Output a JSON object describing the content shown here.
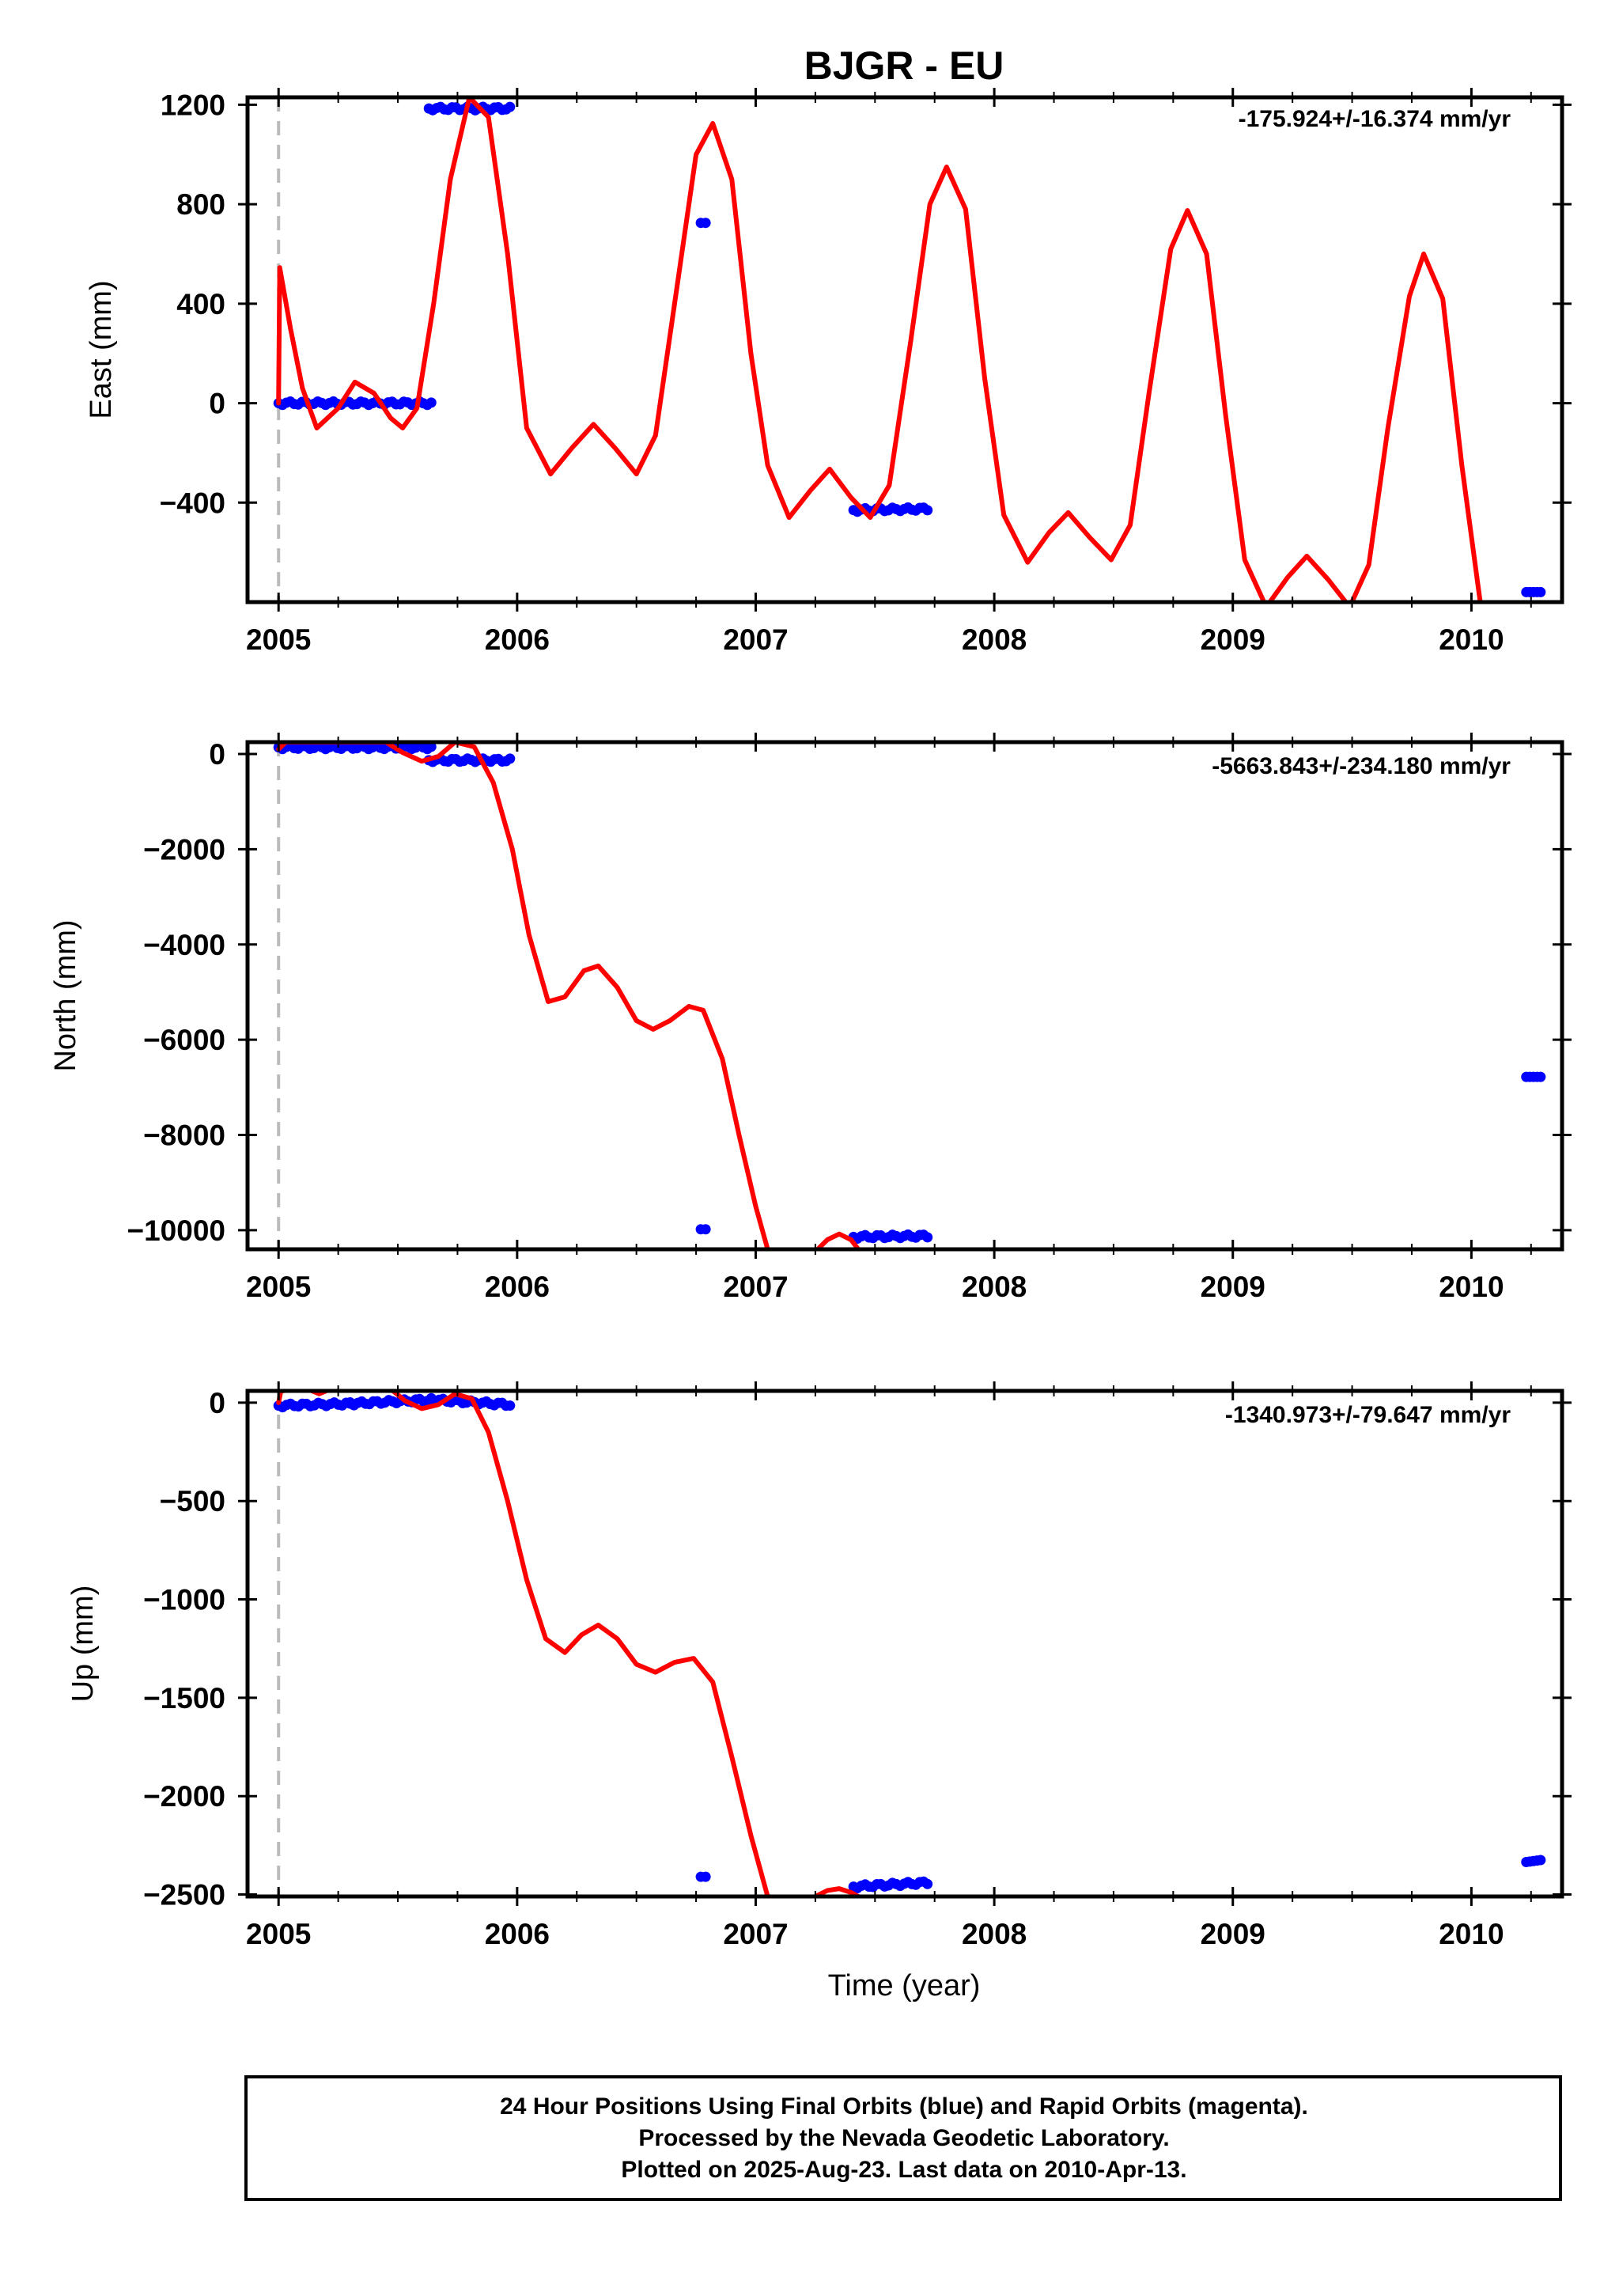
{
  "chart_data": [
    {
      "type": "scatter",
      "panel": "east",
      "title": "BJGR - EU",
      "ylabel": "East (mm)",
      "xlabel": "",
      "xlim": [
        2004.87,
        2010.38
      ],
      "ylim": [
        -800,
        1230
      ],
      "xticks": [
        "2005",
        "2006",
        "2007",
        "2008",
        "2009",
        "2010"
      ],
      "yticks": [
        {
          "v": 1200,
          "label": "1200"
        },
        {
          "v": 800,
          "label": "800"
        },
        {
          "v": 400,
          "label": "400"
        },
        {
          "v": 0,
          "label": "0"
        },
        {
          "v": -400,
          "label": "−400"
        }
      ],
      "rate_label": "-175.924+/-16.374 mm/yr",
      "dashed_x": 2005.0,
      "series": [
        {
          "kind": "points",
          "color": "#0000ff",
          "segments": [
            {
              "x0": 2005.0,
              "x1": 2005.64,
              "y0": 0,
              "y1": 0
            },
            {
              "x0": 2005.63,
              "x1": 2005.97,
              "y0": 1185,
              "y1": 1185
            },
            {
              "x0": 2006.77,
              "x1": 2006.79,
              "y0": 725,
              "y1": 725
            },
            {
              "x0": 2007.41,
              "x1": 2007.72,
              "y0": -430,
              "y1": -425
            },
            {
              "x0": 2010.23,
              "x1": 2010.29,
              "y0": -760,
              "y1": -760
            }
          ]
        },
        {
          "kind": "curve",
          "color": "#ff0000",
          "points": [
            [
              2005.0,
              0
            ],
            [
              2005.005,
              545
            ],
            [
              2005.05,
              300
            ],
            [
              2005.1,
              60
            ],
            [
              2005.16,
              -100
            ],
            [
              2005.25,
              -20
            ],
            [
              2005.32,
              85
            ],
            [
              2005.4,
              40
            ],
            [
              2005.47,
              -60
            ],
            [
              2005.52,
              -100
            ],
            [
              2005.58,
              -20
            ],
            [
              2005.65,
              400
            ],
            [
              2005.72,
              900
            ],
            [
              2005.8,
              1230
            ],
            [
              2005.88,
              1150
            ],
            [
              2005.96,
              600
            ],
            [
              2006.04,
              -100
            ],
            [
              2006.14,
              -285
            ],
            [
              2006.23,
              -180
            ],
            [
              2006.32,
              -85
            ],
            [
              2006.41,
              -180
            ],
            [
              2006.5,
              -285
            ],
            [
              2006.58,
              -130
            ],
            [
              2006.66,
              400
            ],
            [
              2006.75,
              1000
            ],
            [
              2006.82,
              1125
            ],
            [
              2006.9,
              900
            ],
            [
              2006.98,
              200
            ],
            [
              2007.05,
              -250
            ],
            [
              2007.14,
              -460
            ],
            [
              2007.23,
              -350
            ],
            [
              2007.31,
              -265
            ],
            [
              2007.4,
              -380
            ],
            [
              2007.48,
              -460
            ],
            [
              2007.56,
              -330
            ],
            [
              2007.65,
              250
            ],
            [
              2007.73,
              800
            ],
            [
              2007.8,
              950
            ],
            [
              2007.88,
              780
            ],
            [
              2007.96,
              100
            ],
            [
              2008.04,
              -450
            ],
            [
              2008.14,
              -640
            ],
            [
              2008.23,
              -520
            ],
            [
              2008.31,
              -440
            ],
            [
              2008.4,
              -540
            ],
            [
              2008.49,
              -630
            ],
            [
              2008.57,
              -490
            ],
            [
              2008.65,
              50
            ],
            [
              2008.74,
              620
            ],
            [
              2008.81,
              775
            ],
            [
              2008.89,
              600
            ],
            [
              2008.97,
              -50
            ],
            [
              2009.05,
              -630
            ],
            [
              2009.14,
              -820
            ],
            [
              2009.23,
              -700
            ],
            [
              2009.31,
              -615
            ],
            [
              2009.4,
              -710
            ],
            [
              2009.49,
              -820
            ],
            [
              2009.57,
              -650
            ],
            [
              2009.65,
              -100
            ],
            [
              2009.74,
              430
            ],
            [
              2009.8,
              600
            ],
            [
              2009.88,
              420
            ],
            [
              2009.96,
              -250
            ],
            [
              2010.04,
              -820
            ]
          ]
        }
      ]
    },
    {
      "type": "scatter",
      "panel": "north",
      "ylabel": "North (mm)",
      "xlabel": "",
      "xlim": [
        2004.87,
        2010.38
      ],
      "ylim": [
        -10400,
        250
      ],
      "xticks": [
        "2005",
        "2006",
        "2007",
        "2008",
        "2009",
        "2010"
      ],
      "yticks": [
        {
          "v": 0,
          "label": "0"
        },
        {
          "v": -2000,
          "label": "−2000"
        },
        {
          "v": -4000,
          "label": "−4000"
        },
        {
          "v": -6000,
          "label": "−6000"
        },
        {
          "v": -8000,
          "label": "−8000"
        },
        {
          "v": -10000,
          "label": "−10000"
        }
      ],
      "rate_label": "-5663.843+/-234.180 mm/yr",
      "dashed_x": 2005.0,
      "series": [
        {
          "kind": "points",
          "color": "#0000ff",
          "segments": [
            {
              "x0": 2005.0,
              "x1": 2005.64,
              "y0": 140,
              "y1": 140
            },
            {
              "x0": 2005.63,
              "x1": 2005.97,
              "y0": -130,
              "y1": -130
            },
            {
              "x0": 2006.77,
              "x1": 2006.79,
              "y0": -9980,
              "y1": -9980
            },
            {
              "x0": 2007.41,
              "x1": 2007.72,
              "y0": -10140,
              "y1": -10120
            },
            {
              "x0": 2010.23,
              "x1": 2010.29,
              "y0": -6780,
              "y1": -6780
            }
          ]
        },
        {
          "kind": "curve",
          "color": "#ff0000",
          "points": [
            [
              2005.0,
              100
            ],
            [
              2005.03,
              250
            ],
            [
              2005.15,
              250
            ],
            [
              2005.3,
              250
            ],
            [
              2005.45,
              250
            ],
            [
              2005.52,
              30
            ],
            [
              2005.6,
              -150
            ],
            [
              2005.67,
              -50
            ],
            [
              2005.74,
              250
            ],
            [
              2005.82,
              150
            ],
            [
              2005.9,
              -600
            ],
            [
              2005.98,
              -2000
            ],
            [
              2006.05,
              -3800
            ],
            [
              2006.13,
              -5200
            ],
            [
              2006.2,
              -5100
            ],
            [
              2006.28,
              -4550
            ],
            [
              2006.34,
              -4450
            ],
            [
              2006.42,
              -4900
            ],
            [
              2006.5,
              -5600
            ],
            [
              2006.57,
              -5780
            ],
            [
              2006.64,
              -5600
            ],
            [
              2006.72,
              -5300
            ],
            [
              2006.78,
              -5380
            ],
            [
              2006.86,
              -6400
            ],
            [
              2006.93,
              -8000
            ],
            [
              2007.0,
              -9500
            ],
            [
              2007.05,
              -10400
            ]
          ]
        },
        {
          "kind": "curve",
          "color": "#ff0000",
          "points": [
            [
              2007.26,
              -10400
            ],
            [
              2007.3,
              -10200
            ],
            [
              2007.35,
              -10080
            ],
            [
              2007.4,
              -10200
            ],
            [
              2007.43,
              -10400
            ]
          ]
        }
      ]
    },
    {
      "type": "scatter",
      "panel": "up",
      "ylabel": "Up (mm)",
      "xlabel": "Time (year)",
      "xlim": [
        2004.87,
        2010.38
      ],
      "ylim": [
        -2510,
        60
      ],
      "xticks": [
        "2005",
        "2006",
        "2007",
        "2008",
        "2009",
        "2010"
      ],
      "yticks": [
        {
          "v": 0,
          "label": "0"
        },
        {
          "v": -500,
          "label": "−500"
        },
        {
          "v": -1000,
          "label": "−1000"
        },
        {
          "v": -1500,
          "label": "−1500"
        },
        {
          "v": -2000,
          "label": "−2000"
        },
        {
          "v": -2500,
          "label": "−2500"
        }
      ],
      "rate_label": "-1340.973+/-79.647 mm/yr",
      "dashed_x": 2005.0,
      "series": [
        {
          "kind": "points",
          "color": "#0000ff",
          "segments": [
            {
              "x0": 2005.0,
              "x1": 2005.3,
              "y0": -15,
              "y1": -5
            },
            {
              "x0": 2005.3,
              "x1": 2005.64,
              "y0": -5,
              "y1": 15
            },
            {
              "x0": 2005.64,
              "x1": 2005.97,
              "y0": 15,
              "y1": -10
            },
            {
              "x0": 2006.77,
              "x1": 2006.79,
              "y0": -2410,
              "y1": -2410
            },
            {
              "x0": 2007.41,
              "x1": 2007.72,
              "y0": -2460,
              "y1": -2440
            },
            {
              "x0": 2010.23,
              "x1": 2010.29,
              "y0": -2335,
              "y1": -2325
            }
          ]
        },
        {
          "kind": "curve",
          "color": "#ff0000",
          "points": [
            [
              2005.0,
              0
            ],
            [
              2005.01,
              60
            ],
            [
              2005.02,
              60
            ]
          ]
        },
        {
          "kind": "curve",
          "color": "#ff0000",
          "points": [
            [
              2005.14,
              60
            ],
            [
              2005.17,
              45
            ],
            [
              2005.2,
              60
            ]
          ]
        },
        {
          "kind": "curve",
          "color": "#ff0000",
          "points": [
            [
              2005.48,
              60
            ],
            [
              2005.53,
              10
            ],
            [
              2005.6,
              -30
            ],
            [
              2005.67,
              -10
            ],
            [
              2005.74,
              45
            ],
            [
              2005.81,
              20
            ],
            [
              2005.88,
              -150
            ],
            [
              2005.96,
              -500
            ],
            [
              2006.04,
              -900
            ],
            [
              2006.12,
              -1200
            ],
            [
              2006.2,
              -1270
            ],
            [
              2006.27,
              -1180
            ],
            [
              2006.34,
              -1130
            ],
            [
              2006.42,
              -1200
            ],
            [
              2006.5,
              -1330
            ],
            [
              2006.58,
              -1370
            ],
            [
              2006.66,
              -1320
            ],
            [
              2006.74,
              -1300
            ],
            [
              2006.82,
              -1420
            ],
            [
              2006.9,
              -1800
            ],
            [
              2006.98,
              -2200
            ],
            [
              2007.05,
              -2510
            ]
          ]
        },
        {
          "kind": "curve",
          "color": "#ff0000",
          "points": [
            [
              2007.25,
              -2510
            ],
            [
              2007.3,
              -2480
            ],
            [
              2007.35,
              -2470
            ],
            [
              2007.4,
              -2490
            ],
            [
              2007.43,
              -2510
            ]
          ]
        }
      ]
    }
  ],
  "footer": {
    "line1": "24 Hour Positions Using Final Orbits (blue) and Rapid Orbits (magenta).",
    "line2": "Processed by the Nevada Geodetic Laboratory.",
    "line3": "Plotted on 2025-Aug-23. Last data on 2010-Apr-13."
  }
}
